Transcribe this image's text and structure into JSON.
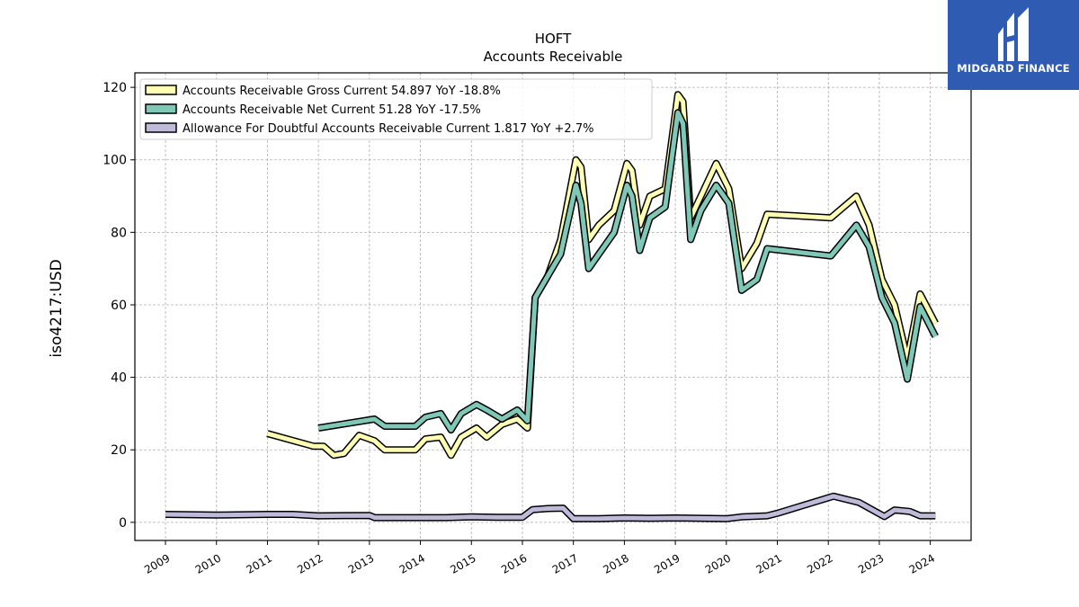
{
  "brand": {
    "name": "MIDGARD FINANCE",
    "color": "#2f5bb3"
  },
  "chart_data": {
    "type": "line",
    "title": "HOFT",
    "subtitle": "Accounts Receivable",
    "xlabel": "",
    "ylabel": "iso4217:USD",
    "xlim": [
      2008.4,
      2024.8
    ],
    "ylim": [
      -5,
      124
    ],
    "yticks": [
      0,
      20,
      40,
      60,
      80,
      100,
      120
    ],
    "xticks": [
      2009,
      2010,
      2011,
      2012,
      2013,
      2014,
      2015,
      2016,
      2017,
      2018,
      2019,
      2020,
      2021,
      2022,
      2023,
      2024
    ],
    "grid": true,
    "legend_position": "top-left",
    "series": [
      {
        "name": "Accounts Receivable Gross Current",
        "legend": "Accounts Receivable Gross Current  54.897 YoY -18.8%",
        "color": "#ffffb3",
        "x": [
          2011.0,
          2011.9,
          2012.1,
          2012.3,
          2012.5,
          2012.8,
          2013.1,
          2013.3,
          2013.6,
          2013.9,
          2014.1,
          2014.4,
          2014.6,
          2014.8,
          2015.1,
          2015.3,
          2015.6,
          2015.9,
          2016.1,
          2016.25,
          2016.5,
          2016.75,
          2017.05,
          2017.15,
          2017.3,
          2017.5,
          2017.8,
          2018.05,
          2018.15,
          2018.3,
          2018.5,
          2018.8,
          2019.05,
          2019.15,
          2019.3,
          2019.5,
          2019.8,
          2020.05,
          2020.3,
          2020.6,
          2020.8,
          2022.05,
          2022.55,
          2022.8,
          2023.05,
          2023.3,
          2023.55,
          2023.8,
          2024.1
        ],
        "y": [
          24.5,
          21,
          21,
          18.5,
          19,
          24,
          22.5,
          20,
          20,
          20,
          23,
          23.5,
          18.5,
          23.5,
          26,
          23.5,
          27,
          28.5,
          26,
          62,
          68,
          78,
          100,
          98,
          78,
          82,
          86,
          99,
          97,
          82,
          90,
          92,
          118,
          116,
          84,
          90,
          99,
          92,
          70,
          77,
          85,
          84,
          90,
          82,
          67,
          60,
          45,
          63,
          54.9
        ]
      },
      {
        "name": "Accounts Receivable Net Current",
        "legend": "Accounts Receivable Net Current  51.28 YoY -17.5%",
        "color": "#7fc8b8",
        "x": [
          2012.0,
          2013.1,
          2013.3,
          2013.6,
          2013.9,
          2014.1,
          2014.4,
          2014.6,
          2014.8,
          2015.1,
          2015.3,
          2015.6,
          2015.9,
          2016.1,
          2016.25,
          2016.5,
          2016.75,
          2017.05,
          2017.15,
          2017.3,
          2017.5,
          2017.8,
          2018.05,
          2018.15,
          2018.3,
          2018.5,
          2018.8,
          2019.05,
          2019.15,
          2019.3,
          2019.5,
          2019.8,
          2020.05,
          2020.3,
          2020.6,
          2020.8,
          2022.05,
          2022.55,
          2022.8,
          2023.05,
          2023.3,
          2023.55,
          2023.8,
          2024.1
        ],
        "y": [
          26,
          28.5,
          26.5,
          26.5,
          26.5,
          29,
          30,
          25.5,
          30,
          32.5,
          31,
          28.5,
          31,
          28,
          62,
          68,
          74,
          93,
          88,
          70,
          74,
          80,
          93,
          90,
          75,
          84,
          87,
          113,
          110,
          78,
          86,
          93,
          88,
          64,
          67,
          75.5,
          73.5,
          82,
          76,
          62,
          55,
          39.5,
          59.5,
          51.3
        ]
      },
      {
        "name": "Allowance For Doubtful Accounts Receivable Current",
        "legend": "Allowance For Doubtful Accounts Receivable Current  1.817 YoY +2.7%",
        "color": "#bebada",
        "x": [
          2009.0,
          2010.0,
          2011.0,
          2011.5,
          2012.0,
          2013.0,
          2013.1,
          2014.0,
          2014.5,
          2015.0,
          2015.5,
          2016.0,
          2016.2,
          2016.5,
          2016.8,
          2017.0,
          2017.2,
          2017.5,
          2018.0,
          2018.5,
          2019.0,
          2019.5,
          2020.0,
          2020.3,
          2020.8,
          2021.0,
          2022.1,
          2022.6,
          2023.1,
          2023.3,
          2023.6,
          2023.8,
          2024.1
        ],
        "y": [
          2.2,
          2.0,
          2.2,
          2.2,
          1.8,
          1.9,
          1.3,
          1.3,
          1.3,
          1.5,
          1.4,
          1.4,
          3.5,
          3.8,
          3.9,
          1.0,
          1.0,
          1.0,
          1.2,
          1.1,
          1.2,
          1.1,
          1.0,
          1.5,
          1.8,
          2.5,
          7.2,
          5.5,
          1.6,
          3.4,
          3.0,
          1.8,
          1.8
        ]
      }
    ]
  }
}
